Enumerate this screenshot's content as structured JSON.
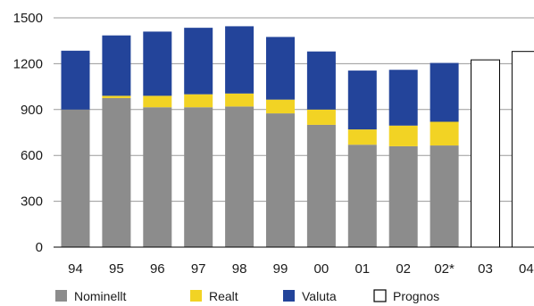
{
  "chart_data": {
    "type": "bar",
    "stacked": true,
    "categories": [
      "94",
      "95",
      "96",
      "97",
      "98",
      "99",
      "00",
      "01",
      "02",
      "02*",
      "03",
      "04"
    ],
    "series": [
      {
        "name": "Nominellt",
        "color": "#8c8c8c",
        "values": [
          900,
          975,
          915,
          915,
          920,
          875,
          800,
          670,
          660,
          665,
          null,
          null
        ]
      },
      {
        "name": "Realt",
        "color": "#f2d324",
        "values": [
          0,
          15,
          75,
          85,
          85,
          90,
          100,
          100,
          135,
          155,
          null,
          null
        ]
      },
      {
        "name": "Valuta",
        "color": "#23449a",
        "values": [
          385,
          395,
          420,
          435,
          440,
          410,
          380,
          385,
          365,
          385,
          null,
          null
        ]
      },
      {
        "name": "Prognos",
        "color": "#ffffff",
        "values": [
          null,
          null,
          null,
          null,
          null,
          null,
          null,
          null,
          null,
          null,
          1225,
          1280
        ]
      }
    ],
    "yticks": [
      "0",
      "300",
      "600",
      "900",
      "1200",
      "1500"
    ],
    "ylim": [
      0,
      1500
    ],
    "grid": "horizontal",
    "legend": "bottom"
  }
}
